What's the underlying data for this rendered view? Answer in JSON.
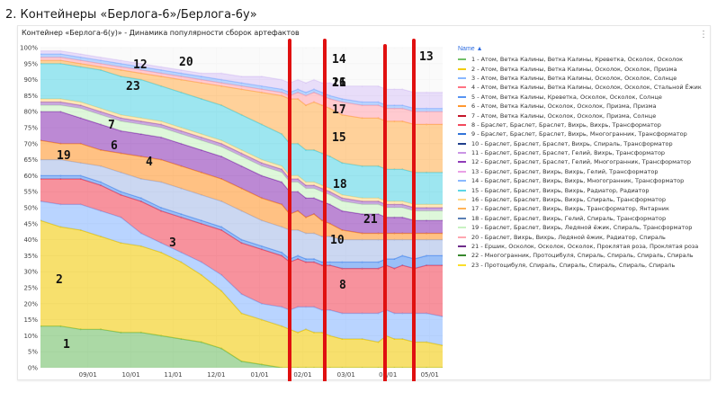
{
  "page_heading": "2. Контейнеры «Берлога-6»/Берлога-6у»",
  "panel": {
    "title": "Контейнер «Берлога-6(у)» - Динамика популярности сборок артефактов",
    "menu_icon": "⋮"
  },
  "legend_header": "Name ▲",
  "chart_data": {
    "type": "area",
    "stacked": true,
    "percent": true,
    "title": "Контейнер «Берлога-6(у)» - Динамика популярности сборок артефактов",
    "x_ticks": [
      "09/01",
      "10/01",
      "11/01",
      "12/01",
      "01/01",
      "02/01",
      "03/01",
      "04/01",
      "05/01"
    ],
    "y_ticks": [
      "0%",
      "5%",
      "10%",
      "15%",
      "20%",
      "25%",
      "30%",
      "35%",
      "40%",
      "45%",
      "50%",
      "55%",
      "60%",
      "65%",
      "70%",
      "75%",
      "80%",
      "85%",
      "90%",
      "95%",
      "100%"
    ],
    "ylim": [
      0,
      100
    ],
    "legend_position": "right",
    "series": [
      {
        "name": "1 - Атом, Ветка Калины, Ветка Калины, Креветка, Осколок, Осколок",
        "color": "#73bf69"
      },
      {
        "name": "2 - Атом, Ветка Калины, Ветка Калины, Осколок, Осколок, Призма",
        "color": "#f2cc0c"
      },
      {
        "name": "3 - Атом, Ветка Калины, Ветка Калины, Осколок, Осколок, Солнце",
        "color": "#8ab8ff"
      },
      {
        "name": "4 - Атом, Ветка Калины, Ветка Калины, Осколок, Осколок, Стальной Ёжик",
        "color": "#ff7383"
      },
      {
        "name": "5 - Атом, Ветка Калины, Креветка, Осколок, Осколок, Солнце",
        "color": "#5794f2"
      },
      {
        "name": "6 - Атом, Ветка Калины, Осколок, Осколок, Призма, Призма",
        "color": "#ff9830"
      },
      {
        "name": "7 - Атом, Ветка Калины, Осколок, Осколок, Призма, Солнце",
        "color": "#c4162a"
      },
      {
        "name": "8 - Браслет, Браслет, Браслет, Вихрь, Вихрь, Трансформатор",
        "color": "#f2495c"
      },
      {
        "name": "9 - Браслет, Браслет, Браслет, Вихрь, Многогранник, Трансформатор",
        "color": "#3274d9"
      },
      {
        "name": "10 - Браслет, Браслет, Браслет, Вихрь, Спираль, Трансформатор",
        "color": "#1f3f8c"
      },
      {
        "name": "11 - Браслет, Браслет, Браслет, Гелий, Вихрь, Трансформатор",
        "color": "#ca95e5"
      },
      {
        "name": "12 - Браслет, Браслет, Браслет, Гелий, Многогранник, Трансформатор",
        "color": "#8f3bb8"
      },
      {
        "name": "13 - Браслет, Браслет, Вихрь, Вихрь, Гелий, Трансформатор",
        "color": "#e9a0e6"
      },
      {
        "name": "14 - Браслет, Браслет, Вихрь, Вихрь, Многогранник, Трансформатор",
        "color": "#8ab8ff"
      },
      {
        "name": "15 - Браслет, Браслет, Вихрь, Вихрь, Радиатор, Радиатор",
        "color": "#5cd6e6"
      },
      {
        "name": "16 - Браслет, Браслет, Вихрь, Вихрь, Спираль, Трансформатор",
        "color": "#ffd98a"
      },
      {
        "name": "17 - Браслет, Браслет, Вихрь, Вихрь, Трансформатор, Янтарник",
        "color": "#ffb357"
      },
      {
        "name": "18 - Браслет, Браслет, Вихрь, Гелий, Спираль, Трансформатор",
        "color": "#5a7fb5"
      },
      {
        "name": "19 - Браслет, Браслет, Вихрь, Ледяной ёжик, Спираль, Трансформатор",
        "color": "#c8f2c2"
      },
      {
        "name": "20 - Браслет, Вихрь, Вихрь, Ледяной ёжик, Радиатор, Спираль",
        "color": "#ffa6b0"
      },
      {
        "name": "21 - Ершик, Осколок, Осколок, Осколок, Проклятая роза, Проклятая роза",
        "color": "#6e2c8a"
      },
      {
        "name": "22 - Многогранник, Протоцибуля, Спираль, Спираль, Спираль, Спираль",
        "color": "#37872d"
      },
      {
        "name": "23 - Протоцибуля, Спираль, Спираль, Спираль, Спираль, Спираль",
        "color": "#fade2a"
      }
    ],
    "annotations": [
      "1",
      "2",
      "3",
      "4",
      "6",
      "7",
      "8",
      "10",
      "12",
      "13",
      "14",
      "15",
      "16",
      "17",
      "18",
      "19",
      "20",
      "21",
      "21",
      "23"
    ]
  }
}
